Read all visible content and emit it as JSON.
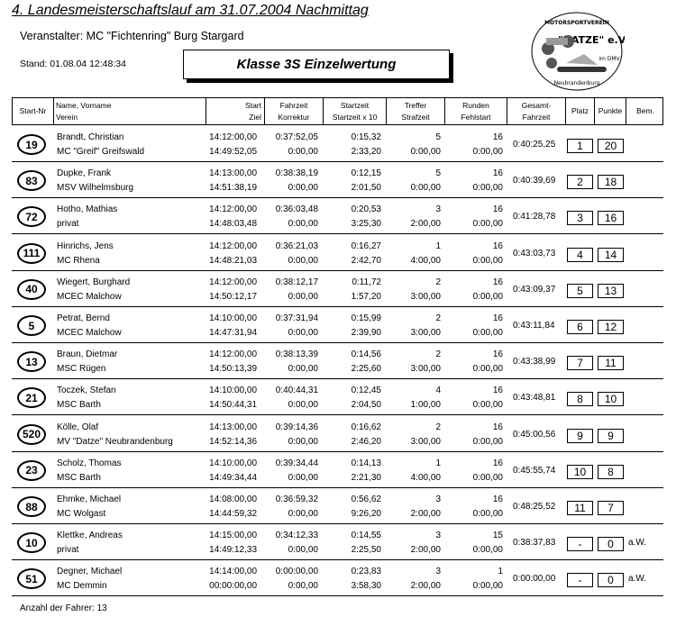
{
  "header": {
    "title": "4. Landesmeisterschaftslauf am 31.07.2004 Nachmittag",
    "organizer": "Veranstalter:   MC \"Fichtenring\" Burg Stargard",
    "stand": "Stand:  01.08.04 12:48:34",
    "class_title": "Klasse 3S Einzelwertung"
  },
  "logo": {
    "top": "MOTORSPORTVEREIN",
    "name": "\"DATZE\" e.V.",
    "sub": "im DMV",
    "city": "Neubrandenburg"
  },
  "columns": [
    [
      "Start-Nr",
      ""
    ],
    [
      "Name, Vorname",
      "Verein"
    ],
    [
      "Start",
      "Ziel"
    ],
    [
      "Fahrzeit",
      "Korrektur"
    ],
    [
      "Startzeit",
      "Startzeit x 10"
    ],
    [
      "Treffer",
      "Strafzeit"
    ],
    [
      "Runden",
      "Fehlstart"
    ],
    [
      "Gesamt-",
      "Fahrzeit"
    ],
    [
      "Platz",
      ""
    ],
    [
      "Punkte",
      ""
    ],
    [
      "Bem.",
      ""
    ]
  ],
  "rows": [
    {
      "nr": "19",
      "name": "Brandt, Christian",
      "club": "MC \"Greif\" Greifswald",
      "start": "14:12:00,00",
      "ziel": "14:49:52,05",
      "fahrzeit": "0:37:52,05",
      "korrektur": "0:00,00",
      "startzeit": "0:15,32",
      "startzeit10": "2:33,20",
      "treffer": "5",
      "strafzeit": "0:00,00",
      "runden": "16",
      "fehlstart": "0:00,00",
      "gesamt": "0:40:25,25",
      "platz": "1",
      "punkte": "20",
      "bem": ""
    },
    {
      "nr": "83",
      "name": "Dupke, Frank",
      "club": "MSV Wilhelmsburg",
      "start": "14:13:00,00",
      "ziel": "14:51:38,19",
      "fahrzeit": "0:38:38,19",
      "korrektur": "0:00,00",
      "startzeit": "0:12,15",
      "startzeit10": "2:01,50",
      "treffer": "5",
      "strafzeit": "0:00,00",
      "runden": "16",
      "fehlstart": "0:00,00",
      "gesamt": "0:40:39,69",
      "platz": "2",
      "punkte": "18",
      "bem": ""
    },
    {
      "nr": "72",
      "name": "Hotho, Mathias",
      "club": "privat",
      "start": "14:12:00,00",
      "ziel": "14:48:03,48",
      "fahrzeit": "0:36:03,48",
      "korrektur": "0:00,00",
      "startzeit": "0:20,53",
      "startzeit10": "3:25,30",
      "treffer": "3",
      "strafzeit": "2:00,00",
      "runden": "16",
      "fehlstart": "0:00,00",
      "gesamt": "0:41:28,78",
      "platz": "3",
      "punkte": "16",
      "bem": ""
    },
    {
      "nr": "111",
      "name": "Hinrichs, Jens",
      "club": "MC Rhena",
      "start": "14:12:00,00",
      "ziel": "14:48:21,03",
      "fahrzeit": "0:36:21,03",
      "korrektur": "0:00,00",
      "startzeit": "0:16,27",
      "startzeit10": "2:42,70",
      "treffer": "1",
      "strafzeit": "4:00,00",
      "runden": "16",
      "fehlstart": "0:00,00",
      "gesamt": "0:43:03,73",
      "platz": "4",
      "punkte": "14",
      "bem": ""
    },
    {
      "nr": "40",
      "name": "Wiegert, Burghard",
      "club": "MCEC Malchow",
      "start": "14:12:00,00",
      "ziel": "14:50:12,17",
      "fahrzeit": "0:38:12,17",
      "korrektur": "0:00,00",
      "startzeit": "0:11,72",
      "startzeit10": "1:57,20",
      "treffer": "2",
      "strafzeit": "3:00,00",
      "runden": "16",
      "fehlstart": "0:00,00",
      "gesamt": "0:43:09,37",
      "platz": "5",
      "punkte": "13",
      "bem": ""
    },
    {
      "nr": "5",
      "name": "Petrat, Bernd",
      "club": "MCEC Malchow",
      "start": "14:10:00,00",
      "ziel": "14:47:31,94",
      "fahrzeit": "0:37:31,94",
      "korrektur": "0:00,00",
      "startzeit": "0:15,99",
      "startzeit10": "2:39,90",
      "treffer": "2",
      "strafzeit": "3:00,00",
      "runden": "16",
      "fehlstart": "0:00,00",
      "gesamt": "0:43:11,84",
      "platz": "6",
      "punkte": "12",
      "bem": ""
    },
    {
      "nr": "13",
      "name": "Braun, Dietmar",
      "club": "MSC Rügen",
      "start": "14:12:00,00",
      "ziel": "14:50:13,39",
      "fahrzeit": "0:38:13,39",
      "korrektur": "0:00,00",
      "startzeit": "0:14,56",
      "startzeit10": "2:25,60",
      "treffer": "2",
      "strafzeit": "3:00,00",
      "runden": "16",
      "fehlstart": "0:00,00",
      "gesamt": "0:43:38,99",
      "platz": "7",
      "punkte": "11",
      "bem": ""
    },
    {
      "nr": "21",
      "name": "Toczek, Stefan",
      "club": "MSC Barth",
      "start": "14:10:00,00",
      "ziel": "14:50:44,31",
      "fahrzeit": "0:40:44,31",
      "korrektur": "0:00,00",
      "startzeit": "0:12,45",
      "startzeit10": "2:04,50",
      "treffer": "4",
      "strafzeit": "1:00,00",
      "runden": "16",
      "fehlstart": "0:00,00",
      "gesamt": "0:43:48,81",
      "platz": "8",
      "punkte": "10",
      "bem": ""
    },
    {
      "nr": "520",
      "name": "Kölle, Olaf",
      "club": "MV \"Datze\" Neubrandenburg",
      "start": "14:13:00,00",
      "ziel": "14:52:14,36",
      "fahrzeit": "0:39:14,36",
      "korrektur": "0:00,00",
      "startzeit": "0:16,62",
      "startzeit10": "2:46,20",
      "treffer": "2",
      "strafzeit": "3:00,00",
      "runden": "16",
      "fehlstart": "0:00,00",
      "gesamt": "0:45:00,56",
      "platz": "9",
      "punkte": "9",
      "bem": ""
    },
    {
      "nr": "23",
      "name": "Scholz, Thomas",
      "club": "MSC Barth",
      "start": "14:10:00,00",
      "ziel": "14:49:34,44",
      "fahrzeit": "0:39:34,44",
      "korrektur": "0:00,00",
      "startzeit": "0:14,13",
      "startzeit10": "2:21,30",
      "treffer": "1",
      "strafzeit": "4:00,00",
      "runden": "16",
      "fehlstart": "0:00,00",
      "gesamt": "0:45:55,74",
      "platz": "10",
      "punkte": "8",
      "bem": ""
    },
    {
      "nr": "88",
      "name": "Ehmke, Michael",
      "club": "MC Wolgast",
      "start": "14:08:00,00",
      "ziel": "14:44:59,32",
      "fahrzeit": "0:36:59,32",
      "korrektur": "0:00,00",
      "startzeit": "0:56,62",
      "startzeit10": "9:26,20",
      "treffer": "3",
      "strafzeit": "2:00,00",
      "runden": "16",
      "fehlstart": "0:00,00",
      "gesamt": "0:48:25,52",
      "platz": "11",
      "punkte": "7",
      "bem": ""
    },
    {
      "nr": "10",
      "name": "Klettke, Andreas",
      "club": "privat",
      "start": "14:15:00,00",
      "ziel": "14:49:12,33",
      "fahrzeit": "0:34:12,33",
      "korrektur": "0:00,00",
      "startzeit": "0:14,55",
      "startzeit10": "2:25,50",
      "treffer": "3",
      "strafzeit": "2:00,00",
      "runden": "15",
      "fehlstart": "0:00,00",
      "gesamt": "0:38:37,83",
      "platz": "-",
      "punkte": "0",
      "bem": "a.W."
    },
    {
      "nr": "51",
      "name": "Degner, Michael",
      "club": "MC Demmin",
      "start": "14:14:00,00",
      "ziel": "00:00:00,00",
      "fahrzeit": "0:00:00,00",
      "korrektur": "0:00,00",
      "startzeit": "0:23,83",
      "startzeit10": "3:58,30",
      "treffer": "3",
      "strafzeit": "2:00,00",
      "runden": "1",
      "fehlstart": "0:00,00",
      "gesamt": "0:00:00,00",
      "platz": "-",
      "punkte": "0",
      "bem": "a.W."
    }
  ],
  "footer": "Anzahl der Fahrer: 13"
}
